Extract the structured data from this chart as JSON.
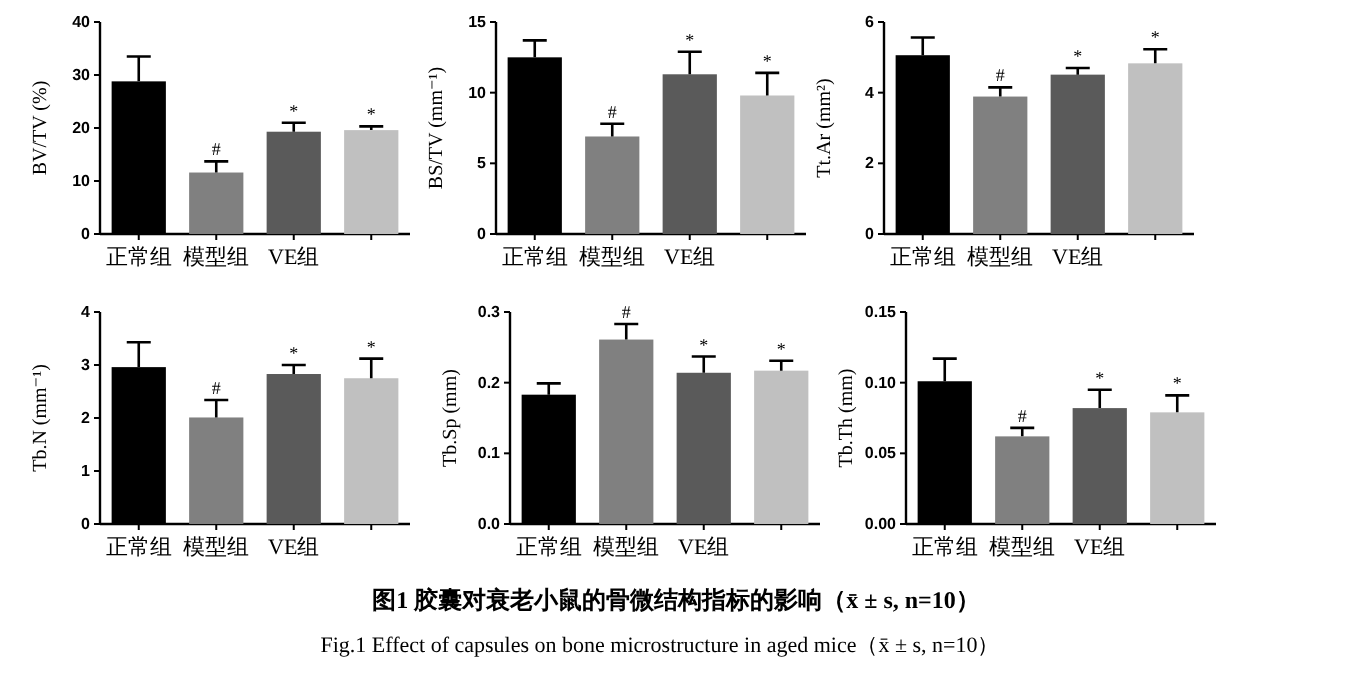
{
  "chart_data": [
    {
      "type": "bar",
      "ylabel": "BV/TV (%)",
      "categories": [
        "正常组",
        "模型组",
        "VE组",
        null
      ],
      "values": [
        28.8,
        11.6,
        19.3,
        19.6
      ],
      "errors": [
        4.7,
        2.1,
        1.7,
        0.7
      ],
      "colors": [
        "#000000",
        "#808080",
        "#5a5a5a",
        "#c0c0c0"
      ],
      "value_labels": [
        null,
        "#",
        "*",
        "*"
      ],
      "ylim": [
        0,
        40
      ],
      "yticks": [
        0,
        10,
        20,
        30,
        40
      ]
    },
    {
      "type": "bar",
      "ylabel": "BS/TV (mm⁻¹)",
      "categories": [
        "正常组",
        "模型组",
        "VE组",
        null
      ],
      "values": [
        12.5,
        6.9,
        11.3,
        9.8
      ],
      "errors": [
        1.2,
        0.9,
        1.6,
        1.6
      ],
      "colors": [
        "#000000",
        "#808080",
        "#5a5a5a",
        "#c0c0c0"
      ],
      "value_labels": [
        null,
        "#",
        "*",
        "*"
      ],
      "ylim": [
        0,
        15
      ],
      "yticks": [
        0,
        5,
        10,
        15
      ]
    },
    {
      "type": "bar",
      "ylabel": "Tt.Ar (mm²)",
      "categories": [
        "正常组",
        "模型组",
        "VE组",
        null
      ],
      "values": [
        5.06,
        3.89,
        4.51,
        4.83
      ],
      "errors": [
        0.5,
        0.26,
        0.19,
        0.4
      ],
      "colors": [
        "#000000",
        "#808080",
        "#5a5a5a",
        "#c0c0c0"
      ],
      "value_labels": [
        null,
        "#",
        "*",
        "*"
      ],
      "ylim": [
        0,
        6
      ],
      "yticks": [
        0,
        2,
        4,
        6
      ]
    },
    {
      "type": "bar",
      "ylabel": "Tb.N (mm⁻¹)",
      "categories": [
        "正常组",
        "模型组",
        "VE组",
        null
      ],
      "values": [
        2.96,
        2.01,
        2.83,
        2.75
      ],
      "errors": [
        0.47,
        0.33,
        0.17,
        0.37
      ],
      "colors": [
        "#000000",
        "#808080",
        "#5a5a5a",
        "#c0c0c0"
      ],
      "value_labels": [
        null,
        "#",
        "*",
        "*"
      ],
      "ylim": [
        0,
        4
      ],
      "yticks": [
        0,
        1,
        2,
        3,
        4
      ]
    },
    {
      "type": "bar",
      "ylabel": "Tb.Sp (mm)",
      "categories": [
        "正常组",
        "模型组",
        "VE组",
        null
      ],
      "values": [
        0.183,
        0.261,
        0.214,
        0.217
      ],
      "errors": [
        0.016,
        0.022,
        0.023,
        0.014
      ],
      "colors": [
        "#000000",
        "#808080",
        "#5a5a5a",
        "#c0c0c0"
      ],
      "value_labels": [
        null,
        "#",
        "*",
        "*"
      ],
      "ylim": [
        0,
        0.3
      ],
      "yticks": [
        {
          "value": 0,
          "label": "0.0"
        },
        {
          "value": 0.1,
          "label": "0.1"
        },
        {
          "value": 0.2,
          "label": "0.2"
        },
        {
          "value": 0.3,
          "label": "0.3"
        }
      ]
    },
    {
      "type": "bar",
      "ylabel": "Tb.Th (mm)",
      "categories": [
        "正常组",
        "模型组",
        "VE组",
        null
      ],
      "values": [
        0.101,
        0.062,
        0.082,
        0.079
      ],
      "errors": [
        0.016,
        0.006,
        0.013,
        0.012
      ],
      "colors": [
        "#000000",
        "#808080",
        "#5a5a5a",
        "#c0c0c0"
      ],
      "value_labels": [
        null,
        "#",
        "*",
        "*"
      ],
      "ylim": [
        0,
        0.15
      ],
      "yticks": [
        {
          "value": 0,
          "label": "0.00"
        },
        {
          "value": 0.05,
          "label": "0.05"
        },
        {
          "value": 0.1,
          "label": "0.10"
        },
        {
          "value": 0.15,
          "label": "0.15"
        }
      ],
      "annotations": [
        "图1  胶囊对衰老小鼠的骨微结构指标的影响（x̄ ± s, n=10）",
        "Fig.1  Effect of capsules on bone microstructure in aged mice（x̄ ± s, n=10）"
      ]
    }
  ]
}
